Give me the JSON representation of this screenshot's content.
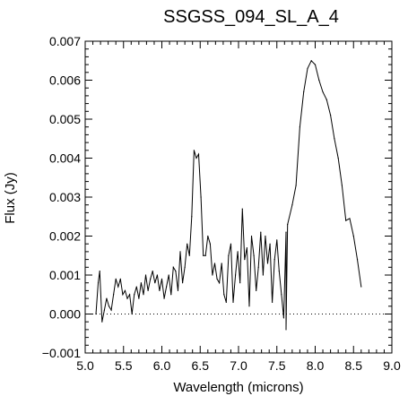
{
  "chart_data": {
    "type": "line",
    "title": "SSGSS_094_SL_A_4",
    "xlabel": "Wavelength (microns)",
    "ylabel": "Flux (Jy)",
    "xlim": [
      5.0,
      9.0
    ],
    "ylim": [
      -0.001,
      0.007
    ],
    "xticks": [
      5.0,
      5.5,
      6.0,
      6.5,
      7.0,
      7.5,
      8.0,
      8.5,
      9.0
    ],
    "xtick_labels": [
      "5.0",
      "5.5",
      "6.0",
      "6.5",
      "7.0",
      "7.5",
      "8.0",
      "8.5",
      "9.0"
    ],
    "yticks": [
      -0.001,
      0.0,
      0.001,
      0.002,
      0.003,
      0.004,
      0.005,
      0.006,
      0.007
    ],
    "ytick_labels": [
      "−0.001",
      "0.000",
      "0.001",
      "0.002",
      "0.003",
      "0.004",
      "0.005",
      "0.006",
      "0.007"
    ],
    "zero_line": {
      "y": 0.0,
      "style": "dotted"
    },
    "grid": false,
    "colors": {
      "line": "#000000",
      "axes": "#000000",
      "background": "#ffffff"
    },
    "series": [
      {
        "x": [
          5.14,
          5.17,
          5.19,
          5.22,
          5.25,
          5.28,
          5.31,
          5.34,
          5.37,
          5.4,
          5.43,
          5.46,
          5.49,
          5.52,
          5.55,
          5.58,
          5.61,
          5.64,
          5.67,
          5.7,
          5.73,
          5.76,
          5.79,
          5.82,
          5.85,
          5.88,
          5.91,
          5.94,
          5.97,
          6.0,
          6.03,
          6.06,
          6.09,
          6.12,
          6.15,
          6.18,
          6.21,
          6.24,
          6.27,
          6.3,
          6.33,
          6.36,
          6.39,
          6.42,
          6.45,
          6.48,
          6.51,
          6.54,
          6.57,
          6.6,
          6.63,
          6.66,
          6.69,
          6.72,
          6.75,
          6.78,
          6.81,
          6.84,
          6.87,
          6.9,
          6.93,
          6.96,
          6.99,
          7.02,
          7.05,
          7.08,
          7.11,
          7.14,
          7.17,
          7.2,
          7.23,
          7.26,
          7.29,
          7.32,
          7.35,
          7.38,
          7.41,
          7.44,
          7.47,
          7.5,
          7.53,
          7.56,
          7.59,
          7.62,
          7.62,
          7.64,
          7.7,
          7.75,
          7.8,
          7.85,
          7.9,
          7.95,
          8.0,
          8.05,
          8.1,
          8.15,
          8.2,
          8.25,
          8.3,
          8.35,
          8.4,
          8.45,
          8.5,
          8.55,
          8.6
        ],
        "y": [
          0.0,
          0.0008,
          0.0011,
          -0.0002,
          0.0001,
          0.0004,
          0.0002,
          0.0001,
          0.0005,
          0.0009,
          0.0007,
          0.0009,
          0.0005,
          0.0006,
          0.0004,
          0.0005,
          0.0,
          0.0005,
          0.0007,
          0.0004,
          0.0008,
          0.0005,
          0.001,
          0.0006,
          0.0009,
          0.0011,
          0.0008,
          0.001,
          0.0006,
          0.0009,
          0.0004,
          0.0007,
          0.001,
          0.0005,
          0.0012,
          0.0011,
          0.0006,
          0.0016,
          0.0008,
          0.0012,
          0.0018,
          0.0015,
          0.0025,
          0.0042,
          0.004,
          0.0041,
          0.003,
          0.0015,
          0.0015,
          0.002,
          0.0018,
          0.001,
          0.0013,
          0.0009,
          0.0008,
          0.0013,
          0.0005,
          0.0003,
          0.0015,
          0.0018,
          0.0003,
          0.001,
          0.0016,
          0.0008,
          0.0027,
          0.0014,
          0.0017,
          0.0002,
          0.002,
          0.0015,
          0.0006,
          0.0012,
          0.0021,
          0.001,
          0.002,
          0.0013,
          0.0018,
          0.0003,
          0.0014,
          0.0019,
          0.0011,
          0.0005,
          -0.0001,
          0.0021,
          -0.0004,
          0.0023,
          0.0028,
          0.0033,
          0.0048,
          0.0057,
          0.0063,
          0.0065,
          0.0064,
          0.006,
          0.0057,
          0.0055,
          0.0051,
          0.0045,
          0.004,
          0.0033,
          0.0024,
          0.00245,
          0.002,
          0.0014,
          0.0007
        ]
      }
    ]
  }
}
